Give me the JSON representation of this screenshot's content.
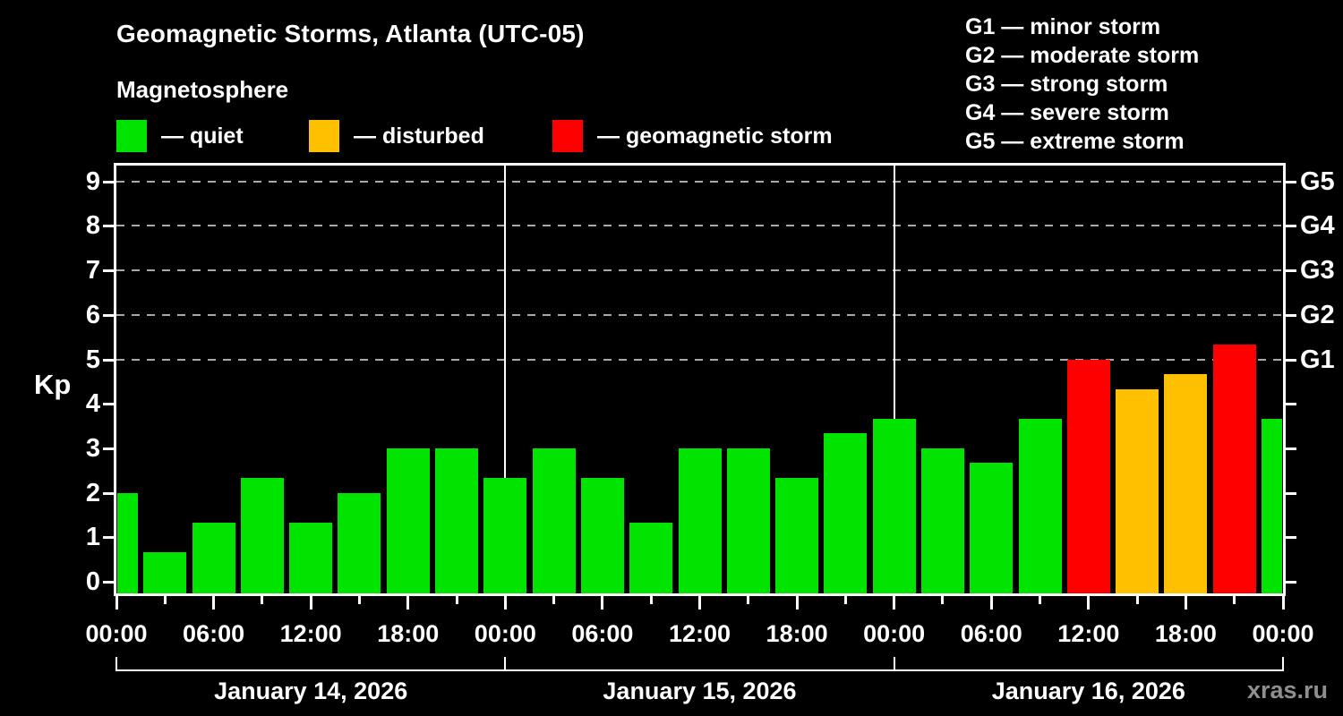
{
  "header": {
    "title": "Geomagnetic Storms, Atlanta (UTC-05)",
    "subtitle": "Magnetosphere"
  },
  "legend": {
    "items": [
      {
        "status": "quiet",
        "label": "— quiet",
        "color": "#00e400"
      },
      {
        "status": "disturbed",
        "label": "— disturbed",
        "color": "#ffc000"
      },
      {
        "status": "storm",
        "label": "— geomagnetic storm",
        "color": "#ff0000"
      }
    ]
  },
  "g_legend": {
    "lines": [
      "G1 — minor storm",
      "G2 — moderate storm",
      "G3 — strong storm",
      "G4 — severe storm",
      "G5 — extreme storm"
    ]
  },
  "watermark": "xras.ru",
  "chart_data": {
    "type": "bar",
    "title": "Geomagnetic Storms, Atlanta (UTC-05)",
    "subtitle": "Magnetosphere",
    "ylabel": "Kp",
    "ylim": [
      -0.35,
      9.4
    ],
    "yticks": [
      0,
      1,
      2,
      3,
      4,
      5,
      6,
      7,
      8,
      9
    ],
    "dashed_gridlines_kp": [
      5,
      6,
      7,
      8,
      9
    ],
    "right_axis_labels": [
      {
        "label": "G1",
        "kp": 5
      },
      {
        "label": "G2",
        "kp": 6
      },
      {
        "label": "G3",
        "kp": 7
      },
      {
        "label": "G4",
        "kp": 8
      },
      {
        "label": "G5",
        "kp": 9
      }
    ],
    "x_hours_span": 72,
    "x_major_tick_every_h": 6,
    "x_minor_tick_every_h": 3,
    "x_major_tick_labels": [
      "00:00",
      "06:00",
      "12:00",
      "18:00",
      "00:00",
      "06:00",
      "12:00",
      "18:00",
      "00:00",
      "06:00",
      "12:00",
      "18:00",
      "00:00"
    ],
    "days": [
      {
        "label": "January 14, 2026"
      },
      {
        "label": "January 15, 2026"
      },
      {
        "label": "January 16, 2026"
      }
    ],
    "status_colors": {
      "quiet": "#00e400",
      "disturbed": "#ffc000",
      "storm": "#ff0000"
    },
    "bars": [
      {
        "time": "Jan 14 00:00",
        "t_h": 0,
        "kp": 2.0,
        "status": "quiet"
      },
      {
        "time": "Jan 14 03:00",
        "t_h": 3,
        "kp": 0.67,
        "status": "quiet"
      },
      {
        "time": "Jan 14 06:00",
        "t_h": 6,
        "kp": 1.33,
        "status": "quiet"
      },
      {
        "time": "Jan 14 09:00",
        "t_h": 9,
        "kp": 2.33,
        "status": "quiet"
      },
      {
        "time": "Jan 14 12:00",
        "t_h": 12,
        "kp": 1.33,
        "status": "quiet"
      },
      {
        "time": "Jan 14 15:00",
        "t_h": 15,
        "kp": 2.0,
        "status": "quiet"
      },
      {
        "time": "Jan 14 18:00",
        "t_h": 18,
        "kp": 3.0,
        "status": "quiet"
      },
      {
        "time": "Jan 14 21:00",
        "t_h": 21,
        "kp": 3.0,
        "status": "quiet"
      },
      {
        "time": "Jan 15 00:00",
        "t_h": 24,
        "kp": 2.33,
        "status": "quiet"
      },
      {
        "time": "Jan 15 03:00",
        "t_h": 27,
        "kp": 3.0,
        "status": "quiet"
      },
      {
        "time": "Jan 15 06:00",
        "t_h": 30,
        "kp": 2.33,
        "status": "quiet"
      },
      {
        "time": "Jan 15 09:00",
        "t_h": 33,
        "kp": 1.33,
        "status": "quiet"
      },
      {
        "time": "Jan 15 12:00",
        "t_h": 36,
        "kp": 3.0,
        "status": "quiet"
      },
      {
        "time": "Jan 15 15:00",
        "t_h": 39,
        "kp": 3.0,
        "status": "quiet"
      },
      {
        "time": "Jan 15 18:00",
        "t_h": 42,
        "kp": 2.33,
        "status": "quiet"
      },
      {
        "time": "Jan 15 21:00",
        "t_h": 45,
        "kp": 3.33,
        "status": "quiet"
      },
      {
        "time": "Jan 16 00:00",
        "t_h": 48,
        "kp": 3.67,
        "status": "quiet"
      },
      {
        "time": "Jan 16 03:00",
        "t_h": 51,
        "kp": 3.0,
        "status": "quiet"
      },
      {
        "time": "Jan 16 06:00",
        "t_h": 54,
        "kp": 2.67,
        "status": "quiet"
      },
      {
        "time": "Jan 16 09:00",
        "t_h": 57,
        "kp": 3.67,
        "status": "quiet"
      },
      {
        "time": "Jan 16 12:00",
        "t_h": 60,
        "kp": 5.0,
        "status": "storm"
      },
      {
        "time": "Jan 16 15:00",
        "t_h": 63,
        "kp": 4.33,
        "status": "disturbed"
      },
      {
        "time": "Jan 16 18:00",
        "t_h": 66,
        "kp": 4.67,
        "status": "disturbed"
      },
      {
        "time": "Jan 16 21:00",
        "t_h": 69,
        "kp": 5.33,
        "status": "storm"
      },
      {
        "time": "Jan 17 00:00",
        "t_h": 72,
        "kp": 3.67,
        "status": "quiet"
      }
    ]
  }
}
